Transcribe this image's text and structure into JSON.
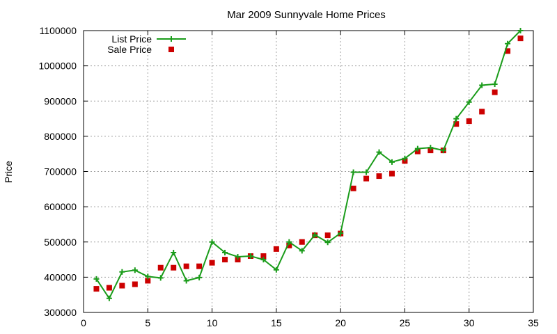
{
  "chart_data": {
    "type": "line",
    "title": "Mar 2009 Sunnyvale Home Prices",
    "xlabel": "",
    "ylabel": "Price",
    "xlim": [
      0,
      35
    ],
    "ylim": [
      300000,
      1100000
    ],
    "xticks": [
      "0",
      "5",
      "10",
      "15",
      "20",
      "25",
      "30",
      "35"
    ],
    "yticks": [
      "300000",
      "400000",
      "500000",
      "600000",
      "700000",
      "800000",
      "900000",
      "1000000",
      "1100000"
    ],
    "grid": true,
    "legend_position": "top-left",
    "series": [
      {
        "name": "List Price",
        "style": "line-with-plus-markers",
        "color": "#1a9c1a",
        "x": [
          1,
          2,
          3,
          4,
          5,
          6,
          7,
          8,
          9,
          10,
          11,
          12,
          13,
          14,
          15,
          16,
          17,
          18,
          19,
          20,
          21,
          22,
          23,
          24,
          25,
          26,
          27,
          28,
          29,
          30,
          31,
          32,
          33,
          34
        ],
        "y": [
          395000,
          340000,
          415000,
          420000,
          402000,
          398000,
          470000,
          390000,
          399000,
          500000,
          470000,
          458000,
          460000,
          450000,
          421000,
          500000,
          475000,
          520000,
          499000,
          525000,
          698000,
          698000,
          755000,
          727000,
          737000,
          765000,
          768000,
          760000,
          850000,
          897000,
          945000,
          948000,
          1063000,
          1100000
        ]
      },
      {
        "name": "Sale Price",
        "style": "square-points",
        "color": "#cc0000",
        "x": [
          1,
          2,
          3,
          4,
          5,
          6,
          7,
          8,
          9,
          10,
          11,
          12,
          13,
          14,
          15,
          16,
          17,
          18,
          19,
          20,
          21,
          22,
          23,
          24,
          25,
          26,
          27,
          28,
          29,
          30,
          31,
          32,
          33,
          34
        ],
        "y": [
          367000,
          370000,
          376000,
          380000,
          390000,
          427000,
          427000,
          431000,
          431000,
          441000,
          450000,
          450000,
          460000,
          460000,
          480000,
          490000,
          500000,
          519000,
          519000,
          524000,
          652000,
          680000,
          687000,
          694000,
          730000,
          757000,
          760000,
          760000,
          835000,
          843000,
          870000,
          925000,
          1042000,
          1078000
        ]
      }
    ]
  }
}
